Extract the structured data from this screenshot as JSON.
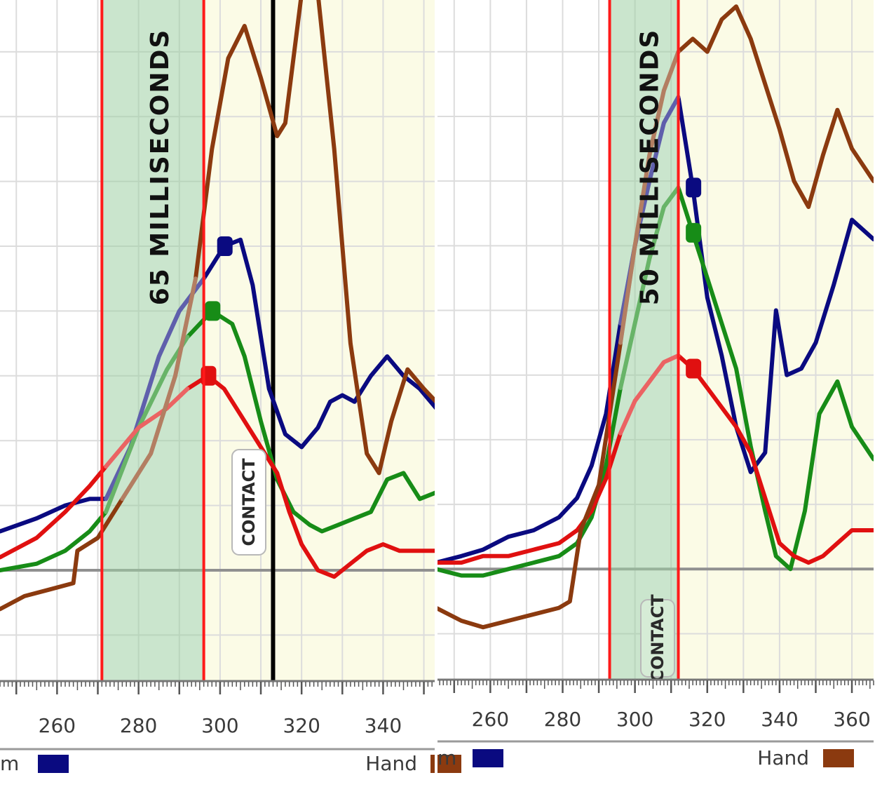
{
  "chart_data": [
    {
      "type": "line",
      "annotation_label": "65 MILLISECONDS",
      "contact_label": "CONTACT",
      "legend": [
        {
          "label": "m",
          "color": "#0a0a80"
        },
        {
          "label": "Hand",
          "color": "#8b3a0f"
        }
      ],
      "x_ticks": [
        260,
        280,
        300,
        320,
        340
      ],
      "xlim": [
        246,
        353
      ],
      "ylim": [
        -1.7,
        8.8
      ],
      "window": [
        271,
        296
      ],
      "contact_x": 313,
      "baseline": 0,
      "grid": true,
      "series": [
        {
          "color": "#0a0a80",
          "points": [
            [
              246,
              0.6
            ],
            [
              255,
              0.8
            ],
            [
              262,
              1.0
            ],
            [
              268,
              1.1
            ],
            [
              272,
              1.1
            ],
            [
              278,
              1.9
            ],
            [
              285,
              3.3
            ],
            [
              290,
              4.0
            ],
            [
              296,
              4.5
            ],
            [
              301,
              5.0
            ],
            [
              305,
              5.1
            ],
            [
              308,
              4.4
            ],
            [
              312,
              2.8
            ],
            [
              316,
              2.1
            ],
            [
              320,
              1.9
            ],
            [
              324,
              2.2
            ],
            [
              327,
              2.6
            ],
            [
              330,
              2.7
            ],
            [
              333,
              2.6
            ],
            [
              337,
              3.0
            ],
            [
              341,
              3.3
            ],
            [
              345,
              3.0
            ],
            [
              349,
              2.8
            ],
            [
              353,
              2.5
            ]
          ]
        },
        {
          "color": "#178c17",
          "points": [
            [
              246,
              0.0
            ],
            [
              255,
              0.1
            ],
            [
              262,
              0.3
            ],
            [
              268,
              0.6
            ],
            [
              272,
              0.9
            ],
            [
              280,
              2.2
            ],
            [
              287,
              3.1
            ],
            [
              292,
              3.6
            ],
            [
              298,
              4.0
            ],
            [
              303,
              3.8
            ],
            [
              306,
              3.3
            ],
            [
              310,
              2.3
            ],
            [
              314,
              1.4
            ],
            [
              318,
              0.9
            ],
            [
              322,
              0.7
            ],
            [
              325,
              0.6
            ],
            [
              329,
              0.7
            ],
            [
              333,
              0.8
            ],
            [
              337,
              0.9
            ],
            [
              341,
              1.4
            ],
            [
              345,
              1.5
            ],
            [
              349,
              1.1
            ],
            [
              353,
              1.2
            ]
          ]
        },
        {
          "color": "#e01010",
          "points": [
            [
              246,
              0.2
            ],
            [
              255,
              0.5
            ],
            [
              262,
              0.9
            ],
            [
              268,
              1.3
            ],
            [
              272,
              1.6
            ],
            [
              280,
              2.2
            ],
            [
              287,
              2.5
            ],
            [
              292,
              2.8
            ],
            [
              297,
              3.0
            ],
            [
              301,
              2.8
            ],
            [
              305,
              2.4
            ],
            [
              310,
              1.9
            ],
            [
              314,
              1.5
            ],
            [
              317,
              0.9
            ],
            [
              320,
              0.4
            ],
            [
              324,
              0.0
            ],
            [
              328,
              -0.1
            ],
            [
              332,
              0.1
            ],
            [
              336,
              0.3
            ],
            [
              340,
              0.4
            ],
            [
              344,
              0.3
            ],
            [
              349,
              0.3
            ],
            [
              353,
              0.3
            ]
          ]
        },
        {
          "color": "#8b3a0f",
          "points": [
            [
              246,
              -0.6
            ],
            [
              252,
              -0.4
            ],
            [
              258,
              -0.3
            ],
            [
              264,
              -0.2
            ],
            [
              265,
              0.3
            ],
            [
              270,
              0.5
            ],
            [
              276,
              1.1
            ],
            [
              283,
              1.8
            ],
            [
              289,
              3.0
            ],
            [
              294,
              4.5
            ],
            [
              298,
              6.5
            ],
            [
              302,
              7.9
            ],
            [
              306,
              8.4
            ],
            [
              310,
              7.6
            ],
            [
              314,
              6.7
            ],
            [
              316,
              6.9
            ],
            [
              320,
              8.9
            ],
            [
              324,
              8.9
            ],
            [
              328,
              6.5
            ],
            [
              332,
              3.5
            ],
            [
              336,
              1.8
            ],
            [
              339,
              1.5
            ],
            [
              342,
              2.3
            ],
            [
              346,
              3.1
            ],
            [
              350,
              2.8
            ],
            [
              353,
              2.6
            ]
          ]
        }
      ]
    },
    {
      "type": "line",
      "annotation_label": "50 MILLISECONDS",
      "contact_label": "CONTACT",
      "legend": [
        {
          "label": "m",
          "color": "#0a0a80"
        },
        {
          "label": "Hand",
          "color": "#8b3a0f"
        }
      ],
      "x_ticks": [
        260,
        280,
        300,
        320,
        340,
        360
      ],
      "xlim": [
        245,
        366
      ],
      "ylim": [
        -1.7,
        8.8
      ],
      "window": [
        293,
        312
      ],
      "baseline": 0,
      "grid": true,
      "series": [
        {
          "color": "#0a0a80",
          "points": [
            [
              245,
              0.1
            ],
            [
              252,
              0.2
            ],
            [
              258,
              0.3
            ],
            [
              265,
              0.5
            ],
            [
              272,
              0.6
            ],
            [
              279,
              0.8
            ],
            [
              284,
              1.1
            ],
            [
              288,
              1.6
            ],
            [
              292,
              2.4
            ],
            [
              296,
              3.8
            ],
            [
              300,
              5.0
            ],
            [
              304,
              6.0
            ],
            [
              308,
              6.9
            ],
            [
              312,
              7.3
            ],
            [
              316,
              5.9
            ],
            [
              320,
              4.2
            ],
            [
              324,
              3.3
            ],
            [
              328,
              2.2
            ],
            [
              332,
              1.5
            ],
            [
              336,
              1.8
            ],
            [
              339,
              4.0
            ],
            [
              342,
              3.0
            ],
            [
              346,
              3.1
            ],
            [
              350,
              3.5
            ],
            [
              355,
              4.4
            ],
            [
              360,
              5.4
            ],
            [
              366,
              5.1
            ]
          ]
        },
        {
          "color": "#178c17",
          "points": [
            [
              245,
              0.0
            ],
            [
              252,
              -0.1
            ],
            [
              258,
              -0.1
            ],
            [
              265,
              0.0
            ],
            [
              272,
              0.1
            ],
            [
              279,
              0.2
            ],
            [
              284,
              0.4
            ],
            [
              288,
              0.8
            ],
            [
              292,
              1.6
            ],
            [
              296,
              2.8
            ],
            [
              300,
              3.8
            ],
            [
              304,
              4.8
            ],
            [
              308,
              5.6
            ],
            [
              312,
              5.9
            ],
            [
              316,
              5.2
            ],
            [
              320,
              4.5
            ],
            [
              324,
              3.8
            ],
            [
              328,
              3.1
            ],
            [
              332,
              1.9
            ],
            [
              336,
              0.9
            ],
            [
              339,
              0.2
            ],
            [
              343,
              0.0
            ],
            [
              347,
              0.9
            ],
            [
              351,
              2.4
            ],
            [
              356,
              2.9
            ],
            [
              360,
              2.2
            ],
            [
              366,
              1.7
            ]
          ]
        },
        {
          "color": "#e01010",
          "points": [
            [
              245,
              0.1
            ],
            [
              252,
              0.1
            ],
            [
              258,
              0.2
            ],
            [
              265,
              0.2
            ],
            [
              272,
              0.3
            ],
            [
              279,
              0.4
            ],
            [
              284,
              0.6
            ],
            [
              288,
              0.9
            ],
            [
              292,
              1.4
            ],
            [
              296,
              2.1
            ],
            [
              300,
              2.6
            ],
            [
              304,
              2.9
            ],
            [
              308,
              3.2
            ],
            [
              312,
              3.3
            ],
            [
              316,
              3.1
            ],
            [
              320,
              2.8
            ],
            [
              324,
              2.5
            ],
            [
              328,
              2.2
            ],
            [
              332,
              1.8
            ],
            [
              336,
              1.1
            ],
            [
              340,
              0.4
            ],
            [
              344,
              0.2
            ],
            [
              348,
              0.1
            ],
            [
              352,
              0.2
            ],
            [
              356,
              0.4
            ],
            [
              360,
              0.6
            ],
            [
              366,
              0.6
            ]
          ]
        },
        {
          "color": "#8b3a0f",
          "points": [
            [
              245,
              -0.6
            ],
            [
              252,
              -0.8
            ],
            [
              258,
              -0.9
            ],
            [
              265,
              -0.8
            ],
            [
              272,
              -0.7
            ],
            [
              279,
              -0.6
            ],
            [
              282,
              -0.5
            ],
            [
              285,
              0.6
            ],
            [
              290,
              1.3
            ],
            [
              296,
              3.5
            ],
            [
              300,
              5.0
            ],
            [
              304,
              6.4
            ],
            [
              308,
              7.4
            ],
            [
              312,
              8.0
            ],
            [
              316,
              8.2
            ],
            [
              320,
              8.0
            ],
            [
              324,
              8.5
            ],
            [
              328,
              8.7
            ],
            [
              332,
              8.2
            ],
            [
              336,
              7.5
            ],
            [
              340,
              6.8
            ],
            [
              344,
              6.0
            ],
            [
              348,
              5.6
            ],
            [
              352,
              6.4
            ],
            [
              356,
              7.1
            ],
            [
              360,
              6.5
            ],
            [
              366,
              6.0
            ]
          ]
        }
      ]
    }
  ]
}
